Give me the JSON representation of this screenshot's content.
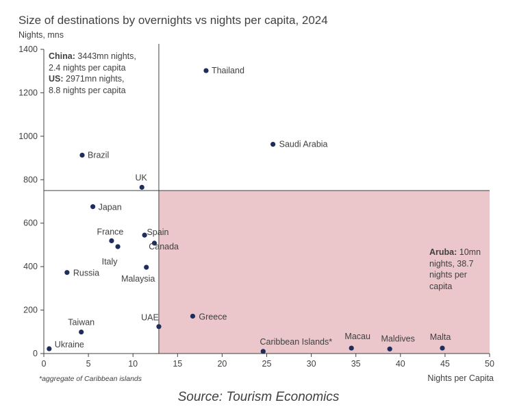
{
  "title": "Size of destinations by overnights vs nights per capita, 2024",
  "units_label": "Nights, mns",
  "footnote": "*aggregate of Caribbean islands",
  "source": "Source: Tourism Economics",
  "annotations": {
    "china_label": "China:",
    "china_text_1": " 3443mn nights,",
    "china_text_2": "2.4 nights per capita",
    "us_label": "US:",
    "us_text_1": " 2971mn nights,",
    "us_text_2": "8.8 nights per capita",
    "aruba_label": "Aruba:",
    "aruba_text": " 10mn nights, 38.7 nights per capita"
  },
  "colors": {
    "marker": "#1f2d5a",
    "shaded_region": "#ebc6ca",
    "axis": "#404040",
    "text": "#404040"
  },
  "chart_data": {
    "type": "scatter",
    "xlabel": "Nights per Capita",
    "ylabel": "Nights, mns",
    "xlim": [
      0,
      50
    ],
    "ylim": [
      0,
      1400
    ],
    "xticks": [
      0,
      5,
      10,
      15,
      20,
      25,
      30,
      35,
      40,
      45,
      50
    ],
    "yticks": [
      0,
      200,
      400,
      600,
      800,
      1000,
      1200,
      1400
    ],
    "grid": false,
    "reference_lines": {
      "x": 12.9,
      "y": 750
    },
    "shaded_region": {
      "x": [
        12.9,
        50
      ],
      "y": [
        0,
        750
      ]
    },
    "points": [
      {
        "label": "Thailand",
        "x": 18.2,
        "y": 1302
      },
      {
        "label": "Saudi Arabia",
        "x": 25.7,
        "y": 963
      },
      {
        "label": "Brazil",
        "x": 4.3,
        "y": 913
      },
      {
        "label": "UK",
        "x": 11.0,
        "y": 765
      },
      {
        "label": "Japan",
        "x": 5.5,
        "y": 676
      },
      {
        "label": "Spain",
        "x": 12.4,
        "y": 508
      },
      {
        "label": "France",
        "x": 7.6,
        "y": 519
      },
      {
        "label": "Italy",
        "x": 8.3,
        "y": 492
      },
      {
        "label": "Canada",
        "x": 11.3,
        "y": 545
      },
      {
        "label": "Malaysia",
        "x": 11.5,
        "y": 397
      },
      {
        "label": "Russia",
        "x": 2.6,
        "y": 373
      },
      {
        "label": "Greece",
        "x": 16.7,
        "y": 172
      },
      {
        "label": "UAE",
        "x": 12.9,
        "y": 124
      },
      {
        "label": "Taiwan",
        "x": 4.2,
        "y": 99
      },
      {
        "label": "Ukraine",
        "x": 0.6,
        "y": 22
      },
      {
        "label": "Caribbean Islands*",
        "x": 24.6,
        "y": 10
      },
      {
        "label": "Macau",
        "x": 34.5,
        "y": 25
      },
      {
        "label": "Maldives",
        "x": 38.8,
        "y": 21
      },
      {
        "label": "Malta",
        "x": 44.7,
        "y": 25
      }
    ]
  }
}
